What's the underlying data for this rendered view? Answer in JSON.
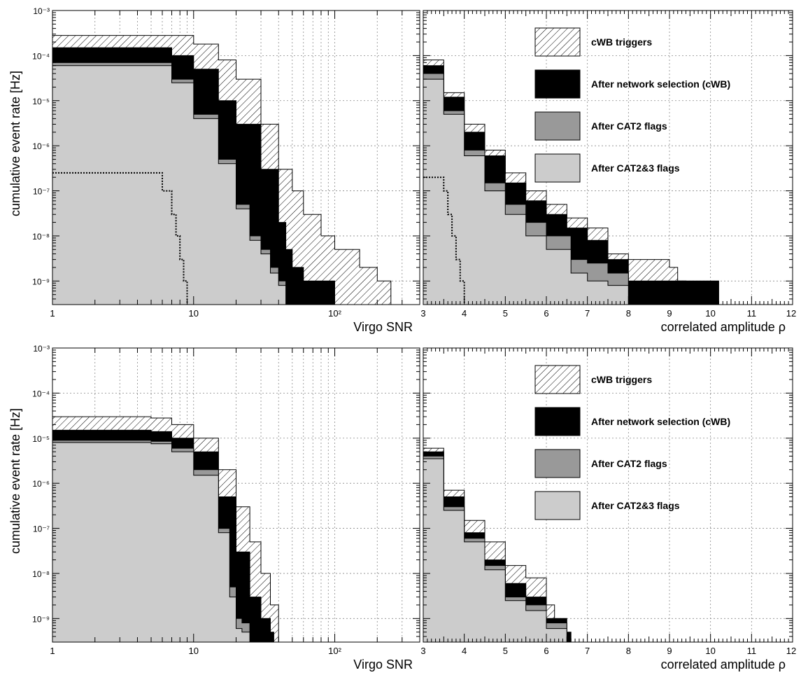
{
  "colors": {
    "hatched": "#ffffff",
    "network": "#000000",
    "cat2": "#999999",
    "cat23": "#cccccc",
    "grid": "#888888",
    "frame": "#000000"
  },
  "legend": [
    {
      "label": "cWB triggers",
      "style": "hatched"
    },
    {
      "label": "After network selection (cWB)",
      "style": "network"
    },
    {
      "label": "After CAT2 flags",
      "style": "cat2"
    },
    {
      "label": "After CAT2&3 flags",
      "style": "cat23"
    }
  ],
  "chart_data": [
    {
      "type": "area",
      "panel": "top-left",
      "xlabel": "Virgo SNR",
      "ylabel": "cumulative event rate [Hz]",
      "xscale": "log",
      "yscale": "log",
      "xlim": [
        1,
        400
      ],
      "ylim": [
        3e-10,
        0.001
      ],
      "grid": true,
      "xtick_labels": [
        "1",
        "10",
        "10²"
      ],
      "ytick_labels": [
        "10⁻⁹",
        "10⁻⁸",
        "10⁻⁷",
        "10⁻⁶",
        "10⁻⁵",
        "10⁻⁴",
        "10⁻³"
      ],
      "series": [
        {
          "key": "hatched",
          "style": "hatched",
          "x": [
            1,
            5,
            10,
            15,
            20,
            30,
            40,
            50,
            60,
            80,
            100,
            150,
            200,
            250
          ],
          "y": [
            0.00028,
            0.00028,
            0.00018,
            8e-05,
            3e-05,
            3e-06,
            3e-07,
            1e-07,
            3e-08,
            1e-08,
            5e-09,
            2e-09,
            1e-09,
            4e-10
          ]
        },
        {
          "key": "network",
          "style": "network",
          "x": [
            1,
            5,
            7,
            10,
            15,
            20,
            30,
            40,
            45,
            50,
            60,
            80,
            100
          ],
          "y": [
            0.00015,
            0.00015,
            0.0001,
            5e-05,
            1e-05,
            3e-06,
            3e-07,
            2e-08,
            5e-09,
            2e-09,
            1e-09,
            1e-09,
            4e-10
          ]
        },
        {
          "key": "cat2",
          "style": "cat2",
          "x": [
            1,
            5,
            7,
            10,
            15,
            20,
            25,
            30,
            35,
            40,
            45
          ],
          "y": [
            7e-05,
            7e-05,
            3e-05,
            5e-06,
            5e-07,
            5e-08,
            1e-08,
            5e-09,
            2e-09,
            1e-09,
            4e-10
          ]
        },
        {
          "key": "cat23",
          "style": "cat23",
          "x": [
            1,
            5,
            7,
            10,
            15,
            20,
            25,
            30,
            35,
            40,
            45
          ],
          "y": [
            6e-05,
            6e-05,
            2.5e-05,
            4e-06,
            4e-07,
            4e-08,
            8e-09,
            4e-09,
            1.5e-09,
            8e-10,
            3e-10
          ]
        },
        {
          "key": "dotted",
          "style": "dotted",
          "x": [
            1,
            5,
            6,
            7,
            7.5,
            8,
            8.5,
            9
          ],
          "y": [
            2.5e-07,
            2.5e-07,
            1e-07,
            3e-08,
            1e-08,
            3e-09,
            1e-09,
            3e-10
          ]
        }
      ]
    },
    {
      "type": "area",
      "panel": "top-right",
      "xlabel": "correlated amplitude ρ",
      "yscale": "log",
      "xlim": [
        3,
        12
      ],
      "ylim": [
        3e-10,
        0.001
      ],
      "grid": true,
      "xtick_labels": [
        "3",
        "4",
        "5",
        "6",
        "7",
        "8",
        "9",
        "10",
        "11",
        "12"
      ],
      "legend_position": "top-right",
      "series": [
        {
          "key": "hatched",
          "style": "hatched",
          "x": [
            3,
            3.5,
            4,
            4.5,
            5,
            5.5,
            6,
            6.5,
            7,
            7.5,
            8,
            8.5,
            9,
            9.2,
            9.4
          ],
          "y": [
            8e-05,
            1.5e-05,
            3e-06,
            8e-07,
            2.5e-07,
            1e-07,
            5e-08,
            2.5e-08,
            1.5e-08,
            4e-09,
            3e-09,
            3e-09,
            2e-09,
            1e-09,
            4e-10
          ]
        },
        {
          "key": "network",
          "style": "network",
          "x": [
            3,
            3.5,
            4,
            4.5,
            5,
            5.5,
            6,
            6.5,
            7,
            7.5,
            8,
            9.4,
            10.2
          ],
          "y": [
            6e-05,
            1.2e-05,
            2e-06,
            6e-07,
            1.5e-07,
            6e-08,
            3e-08,
            1.5e-08,
            8e-09,
            3e-09,
            1e-09,
            1e-09,
            4e-10
          ]
        },
        {
          "key": "cat2",
          "style": "cat2",
          "x": [
            3,
            3.5,
            4,
            4.5,
            5,
            5.5,
            6,
            6.6,
            7,
            7.5,
            8
          ],
          "y": [
            4e-05,
            6e-06,
            8e-07,
            1.5e-07,
            5e-08,
            2e-08,
            1e-08,
            3e-09,
            2.5e-09,
            1.5e-09,
            4e-10
          ]
        },
        {
          "key": "cat23",
          "style": "cat23",
          "x": [
            3,
            3.5,
            4,
            4.5,
            5,
            5.5,
            6,
            6.6,
            7,
            7.5,
            8
          ],
          "y": [
            3e-05,
            5e-06,
            6e-07,
            1e-07,
            3e-08,
            1e-08,
            5e-09,
            1.5e-09,
            1e-09,
            8e-10,
            3e-10
          ]
        },
        {
          "key": "dotted",
          "style": "dotted",
          "x": [
            3,
            3.3,
            3.5,
            3.6,
            3.7,
            3.8,
            3.9,
            4.0
          ],
          "y": [
            2e-07,
            2e-07,
            1e-07,
            3e-08,
            1e-08,
            3e-09,
            1e-09,
            3e-10
          ]
        }
      ]
    },
    {
      "type": "area",
      "panel": "bottom-left",
      "xlabel": "Virgo SNR",
      "ylabel": "cumulative event rate [Hz]",
      "xscale": "log",
      "yscale": "log",
      "xlim": [
        1,
        400
      ],
      "ylim": [
        3e-10,
        0.001
      ],
      "grid": true,
      "xtick_labels": [
        "1",
        "10",
        "10²"
      ],
      "ytick_labels": [
        "10⁻⁹",
        "10⁻⁸",
        "10⁻⁷",
        "10⁻⁶",
        "10⁻⁵",
        "10⁻⁴",
        "10⁻³"
      ],
      "series": [
        {
          "key": "hatched",
          "style": "hatched",
          "x": [
            1,
            3,
            5,
            7,
            10,
            15,
            20,
            25,
            30,
            35,
            40
          ],
          "y": [
            3e-05,
            3e-05,
            2.8e-05,
            2e-05,
            1e-05,
            2e-06,
            3e-07,
            5e-08,
            1e-08,
            2e-09,
            3e-10
          ]
        },
        {
          "key": "network",
          "style": "network",
          "x": [
            1,
            3,
            5,
            7,
            10,
            15,
            20,
            25,
            30,
            35,
            37
          ],
          "y": [
            1.5e-05,
            1.5e-05,
            1.4e-05,
            1e-05,
            5e-06,
            5e-07,
            3e-08,
            3e-09,
            1e-09,
            5e-10,
            3e-10
          ]
        },
        {
          "key": "cat2",
          "style": "cat2",
          "x": [
            1,
            3,
            5,
            7,
            10,
            15,
            18,
            20,
            22,
            25
          ],
          "y": [
            9e-06,
            9e-06,
            8.5e-06,
            6e-06,
            2e-06,
            1e-07,
            5e-09,
            1e-09,
            8e-10,
            3e-10
          ]
        },
        {
          "key": "cat23",
          "style": "cat23",
          "x": [
            1,
            3,
            5,
            7,
            10,
            15,
            18,
            20,
            22,
            25
          ],
          "y": [
            8e-06,
            8e-06,
            7.5e-06,
            5e-06,
            1.5e-06,
            8e-08,
            3e-09,
            6e-10,
            5e-10,
            3e-10
          ]
        }
      ]
    },
    {
      "type": "area",
      "panel": "bottom-right",
      "xlabel": "correlated amplitude ρ",
      "yscale": "log",
      "xlim": [
        3,
        12
      ],
      "ylim": [
        3e-10,
        0.001
      ],
      "grid": true,
      "xtick_labels": [
        "3",
        "4",
        "5",
        "6",
        "7",
        "8",
        "9",
        "10",
        "11",
        "12"
      ],
      "legend_position": "top-right",
      "series": [
        {
          "key": "hatched",
          "style": "hatched",
          "x": [
            3,
            3.5,
            4,
            4.5,
            5,
            5.5,
            6,
            6.2
          ],
          "y": [
            6e-06,
            7e-07,
            1.5e-07,
            5e-08,
            1.5e-08,
            8e-09,
            2e-09,
            3e-10
          ]
        },
        {
          "key": "network",
          "style": "network",
          "x": [
            3,
            3.5,
            4,
            4.5,
            5,
            5.5,
            6,
            6.5,
            6.6
          ],
          "y": [
            5e-06,
            5e-07,
            8e-08,
            2e-08,
            6e-09,
            3e-09,
            1e-09,
            5e-10,
            3e-10
          ]
        },
        {
          "key": "cat2",
          "style": "cat2",
          "x": [
            3,
            3.5,
            4,
            4.5,
            5,
            5.5,
            6,
            6.5
          ],
          "y": [
            4e-06,
            3e-07,
            6e-08,
            1.5e-08,
            3e-09,
            2e-09,
            8e-10,
            3e-10
          ]
        },
        {
          "key": "cat23",
          "style": "cat23",
          "x": [
            3,
            3.5,
            4,
            4.5,
            5,
            5.5,
            6,
            6.5
          ],
          "y": [
            3.5e-06,
            2.5e-07,
            5e-08,
            1.2e-08,
            2.5e-09,
            1.5e-09,
            6e-10,
            3e-10
          ]
        }
      ]
    }
  ]
}
